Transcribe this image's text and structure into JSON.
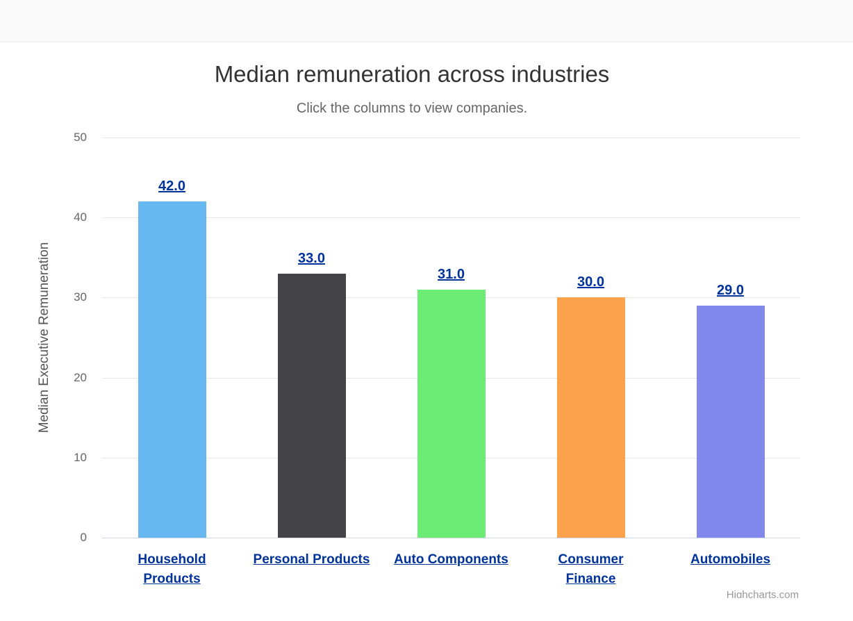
{
  "chart_data": {
    "type": "bar",
    "title": "Median remuneration across industries",
    "subtitle": "Click the columns to view companies.",
    "ylabel": "Median Executive Remuneration",
    "xlabel": "",
    "categories": [
      "Household Products",
      "Personal Products",
      "Auto Components",
      "Consumer Finance",
      "Automobiles"
    ],
    "values": [
      42.0,
      33.0,
      31.0,
      30.0,
      29.0
    ],
    "data_labels": [
      "42.0",
      "33.0",
      "31.0",
      "30.0",
      "29.0"
    ],
    "bar_colors": [
      "#67b7f1",
      "#434348",
      "#6cec74",
      "#fba24c",
      "#8287eb"
    ],
    "ylim": [
      0,
      50
    ],
    "yticks": [
      0,
      10,
      20,
      30,
      40,
      50
    ],
    "grid": true,
    "legend": "none",
    "link_color": "#003399",
    "grid_color": "#e7e7e7",
    "axis_line_color": "#ccd6eb",
    "credit": "Highcharts.com"
  }
}
